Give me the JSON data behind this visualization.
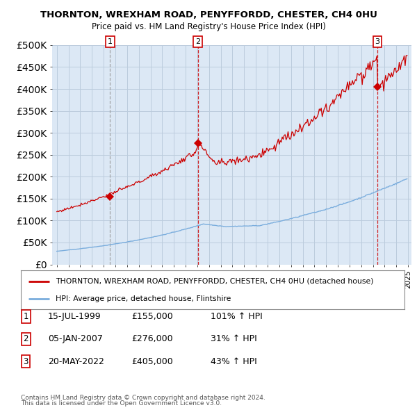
{
  "title": "THORNTON, WREXHAM ROAD, PENYFFORDD, CHESTER, CH4 0HU",
  "subtitle": "Price paid vs. HM Land Registry's House Price Index (HPI)",
  "ylim": [
    0,
    500000
  ],
  "yticks": [
    0,
    50000,
    100000,
    150000,
    200000,
    250000,
    300000,
    350000,
    400000,
    450000,
    500000
  ],
  "sale_year_floats": [
    1999.54,
    2007.04,
    2022.38
  ],
  "sale_prices": [
    155000,
    276000,
    405000
  ],
  "sale_labels": [
    "1",
    "2",
    "3"
  ],
  "sale_vline_colors": [
    "#999999",
    "#cc0000",
    "#cc0000"
  ],
  "sale_info": [
    {
      "label": "1",
      "date": "15-JUL-1999",
      "price": "£155,000",
      "hpi": "101% ↑ HPI"
    },
    {
      "label": "2",
      "date": "05-JAN-2007",
      "price": "£276,000",
      "hpi": "31% ↑ HPI"
    },
    {
      "label": "3",
      "date": "20-MAY-2022",
      "price": "£405,000",
      "hpi": "43% ↑ HPI"
    }
  ],
  "legend_line1": "THORNTON, WREXHAM ROAD, PENYFFORDD, CHESTER, CH4 0HU (detached house)",
  "legend_line2": "HPI: Average price, detached house, Flintshire",
  "footer1": "Contains HM Land Registry data © Crown copyright and database right 2024.",
  "footer2": "This data is licensed under the Open Government Licence v3.0.",
  "price_line_color": "#cc0000",
  "hpi_line_color": "#7aaddd",
  "grid_color": "#bbccdd",
  "background_color": "#ffffff",
  "plot_bg_color": "#dce8f5"
}
